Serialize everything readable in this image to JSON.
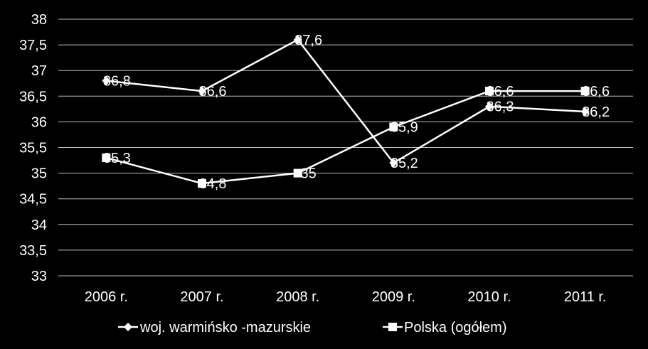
{
  "chart_data": {
    "type": "line",
    "title": "",
    "xlabel": "",
    "ylabel": "",
    "categories": [
      "2006 r.",
      "2007 r.",
      "2008 r.",
      "2009 r.",
      "2010 r.",
      "2011 r."
    ],
    "ylim": [
      33,
      38
    ],
    "yticks": [
      33,
      33.5,
      34,
      34.5,
      35,
      35.5,
      36,
      36.5,
      37,
      37.5,
      38
    ],
    "ytick_labels": [
      "33",
      "33,5",
      "34",
      "34,5",
      "35",
      "35,5",
      "36",
      "36,5",
      "37",
      "37,5",
      "38"
    ],
    "grid": true,
    "legend_position": "bottom",
    "series": [
      {
        "name": "woj. warmińsko -mazurskie",
        "marker": "diamond",
        "color": "#ffffff",
        "values": [
          36.8,
          36.6,
          37.6,
          35.2,
          36.3,
          36.2
        ],
        "labels": [
          "36,8",
          "36,6",
          "37,6",
          "35,2",
          "36,3",
          "36,2"
        ]
      },
      {
        "name": "Polska (ogółem)",
        "marker": "square",
        "color": "#ffffff",
        "values": [
          35.3,
          34.8,
          35,
          35.9,
          36.6,
          36.6
        ],
        "labels": [
          "35,3",
          "34,8",
          "35",
          "35,9",
          "36,6",
          "36,6"
        ]
      }
    ]
  }
}
